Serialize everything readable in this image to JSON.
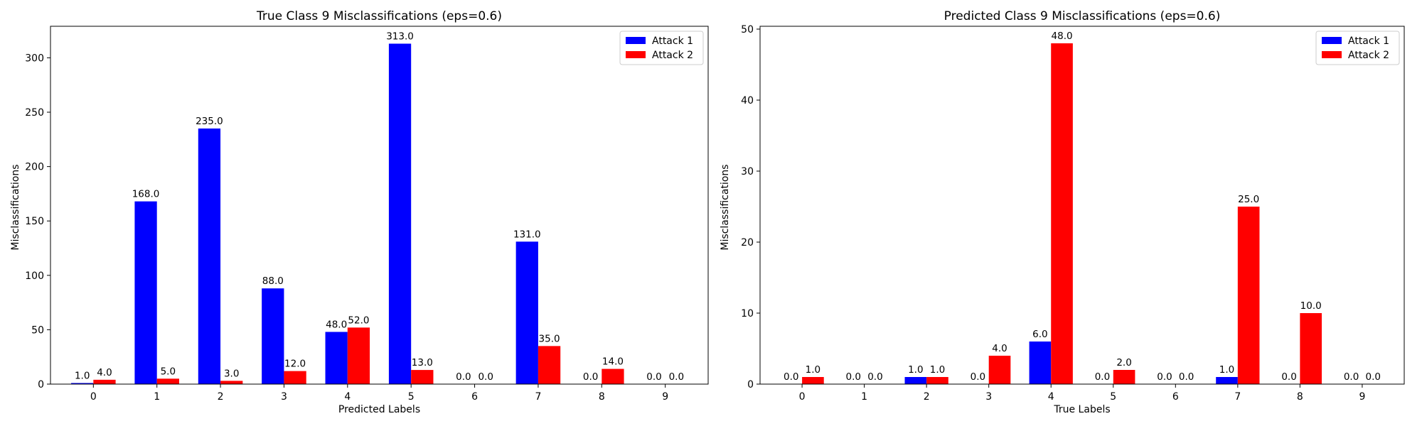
{
  "chart_data": [
    {
      "type": "bar",
      "title": "True Class 9 Misclassifications (eps=0.6)",
      "xlabel": "Predicted Labels",
      "ylabel": "Misclassifications",
      "categories": [
        "0",
        "1",
        "2",
        "3",
        "4",
        "5",
        "6",
        "7",
        "8",
        "9"
      ],
      "ylim": [
        0,
        329
      ],
      "yticks": [
        0,
        50,
        100,
        150,
        200,
        250,
        300
      ],
      "grid": false,
      "legend_position": "top-right",
      "series": [
        {
          "name": "Attack 1",
          "color": "#0000ff",
          "values": [
            1,
            168,
            235,
            88,
            48,
            313,
            0,
            131,
            0,
            0
          ],
          "labels": [
            "1.0",
            "168.0",
            "235.0",
            "88.0",
            "48.0",
            "313.0",
            "0.0",
            "131.0",
            "0.0",
            "0.0"
          ]
        },
        {
          "name": "Attack 2",
          "color": "#ff0000",
          "values": [
            4,
            5,
            3,
            12,
            52,
            13,
            0,
            35,
            14,
            0
          ],
          "labels": [
            "4.0",
            "5.0",
            "3.0",
            "12.0",
            "52.0",
            "13.0",
            "0.0",
            "35.0",
            "14.0",
            "0.0"
          ]
        }
      ]
    },
    {
      "type": "bar",
      "title": "Predicted Class 9 Misclassifications (eps=0.6)",
      "xlabel": "True Labels",
      "ylabel": "Misclassifications",
      "categories": [
        "0",
        "1",
        "2",
        "3",
        "4",
        "5",
        "6",
        "7",
        "8",
        "9"
      ],
      "ylim": [
        0,
        50.4
      ],
      "yticks": [
        0,
        10,
        20,
        30,
        40,
        50
      ],
      "grid": false,
      "legend_position": "top-right",
      "series": [
        {
          "name": "Attack 1",
          "color": "#0000ff",
          "values": [
            0,
            0,
            1,
            0,
            6,
            0,
            0,
            1,
            0,
            0
          ],
          "labels": [
            "0.0",
            "0.0",
            "1.0",
            "0.0",
            "6.0",
            "0.0",
            "0.0",
            "1.0",
            "0.0",
            "0.0"
          ]
        },
        {
          "name": "Attack 2",
          "color": "#ff0000",
          "values": [
            1,
            0,
            1,
            4,
            48,
            2,
            0,
            25,
            10,
            0
          ],
          "labels": [
            "1.0",
            "0.0",
            "1.0",
            "4.0",
            "48.0",
            "2.0",
            "0.0",
            "25.0",
            "10.0",
            "0.0"
          ]
        }
      ]
    }
  ]
}
